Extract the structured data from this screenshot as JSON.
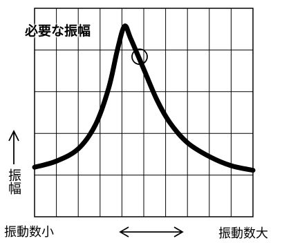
{
  "chart_data": {
    "type": "line",
    "annotation": "必要な振幅",
    "ylabel": "振幅",
    "x_min_label": "振動数小",
    "x_max_label": "振動数大",
    "series": [
      {
        "values": [
          [
            0,
            0.08
          ],
          [
            0.1,
            0.12
          ],
          [
            0.2,
            0.2
          ],
          [
            0.28,
            0.36
          ],
          [
            0.34,
            0.6
          ],
          [
            0.38,
            0.85
          ],
          [
            0.412,
            1.0
          ],
          [
            0.44,
            0.92
          ],
          [
            0.5,
            0.72
          ],
          [
            0.56,
            0.52
          ],
          [
            0.62,
            0.37
          ],
          [
            0.7,
            0.24
          ],
          [
            0.8,
            0.15
          ],
          [
            0.9,
            0.09
          ],
          [
            1.0,
            0.06
          ]
        ]
      }
    ],
    "marker_point": [
      0.5,
      0.72
    ],
    "xlim": [
      0,
      1
    ],
    "ylim": [
      0,
      1
    ],
    "grid": true,
    "colors": {
      "line": "#000000",
      "grid": "#000000",
      "background": "#ffffff"
    }
  }
}
